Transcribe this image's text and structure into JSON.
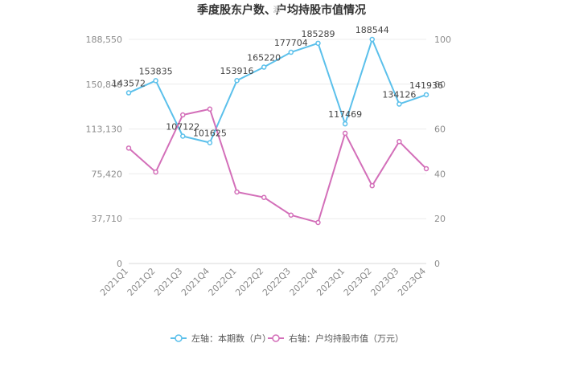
{
  "chart_data": {
    "type": "line",
    "title": "季度股东户数、户均持股市值情况",
    "watermark": "源",
    "categories": [
      "2021Q1",
      "2021Q2",
      "2021Q3",
      "2021Q4",
      "2022Q1",
      "2022Q2",
      "2022Q3",
      "2022Q4",
      "2023Q1",
      "2023Q2",
      "2023Q3",
      "2023Q4"
    ],
    "left_axis": {
      "ticks": [
        "0",
        "37,710",
        "75,420",
        "113,130",
        "150,840",
        "188,550"
      ],
      "ylim": [
        0,
        188550
      ]
    },
    "right_axis": {
      "ticks": [
        "0",
        "20",
        "40",
        "60",
        "80",
        "100"
      ],
      "ylim": [
        0,
        100
      ]
    },
    "grid": true,
    "legend_position": "bottom",
    "series": [
      {
        "name": "左轴：本期数（户）",
        "axis": "left",
        "color": "#5bc0eb",
        "values": [
          143572,
          153835,
          107122,
          101625,
          153916,
          165220,
          177704,
          185289,
          117469,
          188544,
          134126,
          141936
        ],
        "labels": [
          "143572",
          "153835",
          "107122",
          "101625",
          "153916",
          "165220",
          "177704",
          "185289",
          "117469",
          "188544",
          "134126",
          "141936"
        ]
      },
      {
        "name": "右轴：户均持股市值（万元）",
        "axis": "right",
        "color": "#d36fb9",
        "values": [
          51.5,
          40.8,
          66.3,
          68.9,
          31.9,
          29.5,
          21.6,
          18.3,
          58.1,
          34.7,
          54.4,
          42.3
        ]
      }
    ]
  }
}
